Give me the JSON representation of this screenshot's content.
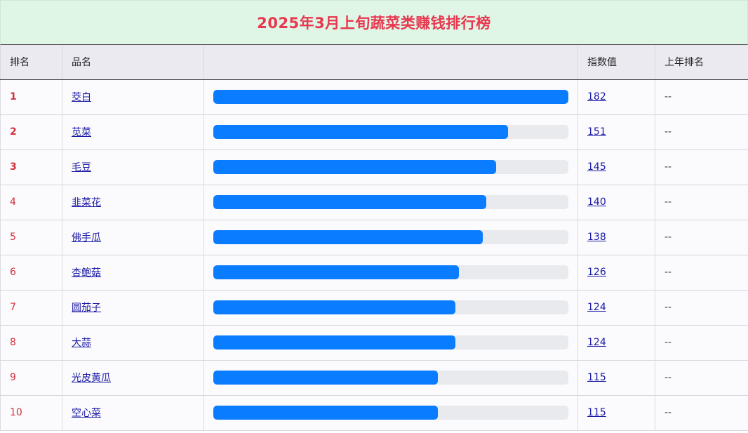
{
  "title": "2025年3月上旬蔬菜类赚钱排行榜",
  "headers": {
    "rank": "排名",
    "name": "品名",
    "bar": "",
    "index": "指数值",
    "prev_rank": "上年排名"
  },
  "colors": {
    "bar_fill": "#0a7cff",
    "bar_track": "#e8eaed",
    "rank_text": "#d0323d",
    "title_text": "#e8384f",
    "title_bg": "#dff5e6"
  },
  "chart_data": {
    "type": "bar",
    "max": 182,
    "categories": [
      "茭白",
      "苋菜",
      "毛豆",
      "韭菜花",
      "佛手瓜",
      "杏鲍菇",
      "圆茄子",
      "大蒜",
      "光皮黄瓜",
      "空心菜"
    ],
    "values": [
      182,
      151,
      145,
      140,
      138,
      126,
      124,
      124,
      115,
      115
    ]
  },
  "rows": [
    {
      "rank": "1",
      "name": "茭白",
      "index": "182",
      "value": 182,
      "prev": "--"
    },
    {
      "rank": "2",
      "name": "苋菜",
      "index": "151",
      "value": 151,
      "prev": "--"
    },
    {
      "rank": "3",
      "name": "毛豆",
      "index": "145",
      "value": 145,
      "prev": "--"
    },
    {
      "rank": "4",
      "name": "韭菜花",
      "index": "140",
      "value": 140,
      "prev": "--"
    },
    {
      "rank": "5",
      "name": "佛手瓜",
      "index": "138",
      "value": 138,
      "prev": "--"
    },
    {
      "rank": "6",
      "name": "杏鲍菇",
      "index": "126",
      "value": 126,
      "prev": "--"
    },
    {
      "rank": "7",
      "name": "圆茄子",
      "index": "124",
      "value": 124,
      "prev": "--"
    },
    {
      "rank": "8",
      "name": "大蒜",
      "index": "124",
      "value": 124,
      "prev": "--"
    },
    {
      "rank": "9",
      "name": "光皮黄瓜",
      "index": "115",
      "value": 115,
      "prev": "--"
    },
    {
      "rank": "10",
      "name": "空心菜",
      "index": "115",
      "value": 115,
      "prev": "--"
    }
  ]
}
